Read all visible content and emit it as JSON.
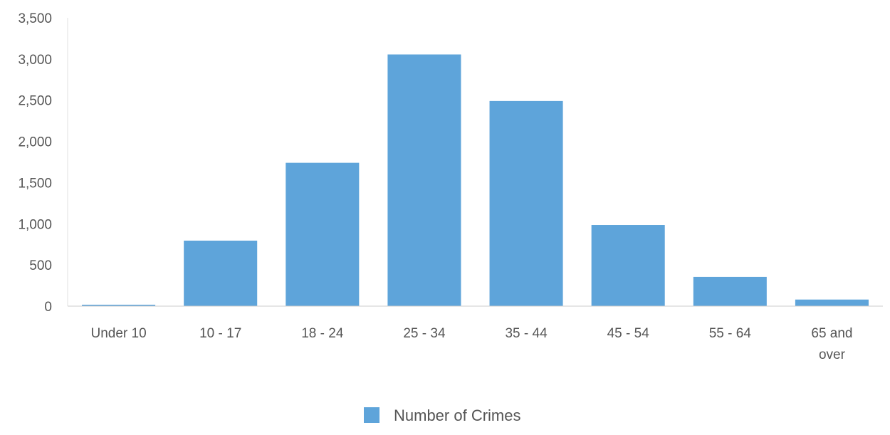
{
  "chart_data": {
    "type": "bar",
    "title": "",
    "xlabel": "",
    "ylabel": "",
    "categories": [
      [
        "Under 10"
      ],
      [
        "10 - 17"
      ],
      [
        "18 - 24"
      ],
      [
        "25 - 34"
      ],
      [
        "35 - 44"
      ],
      [
        "45 - 54"
      ],
      [
        "55 - 64"
      ],
      [
        "65 and",
        "over"
      ]
    ],
    "series": [
      {
        "name": "Number of Crimes",
        "color": "#5ea4da",
        "values": [
          10,
          795,
          1740,
          3055,
          2490,
          985,
          355,
          80
        ]
      }
    ],
    "ylim": [
      0,
      3500
    ],
    "yticks": [
      0,
      500,
      1000,
      1500,
      2000,
      2500,
      3000,
      3500
    ],
    "ytick_labels": [
      "0",
      "500",
      "1,000",
      "1,500",
      "2,000",
      "2,500",
      "3,000",
      "3,500"
    ],
    "grid": false,
    "legend": "bottom-center"
  }
}
